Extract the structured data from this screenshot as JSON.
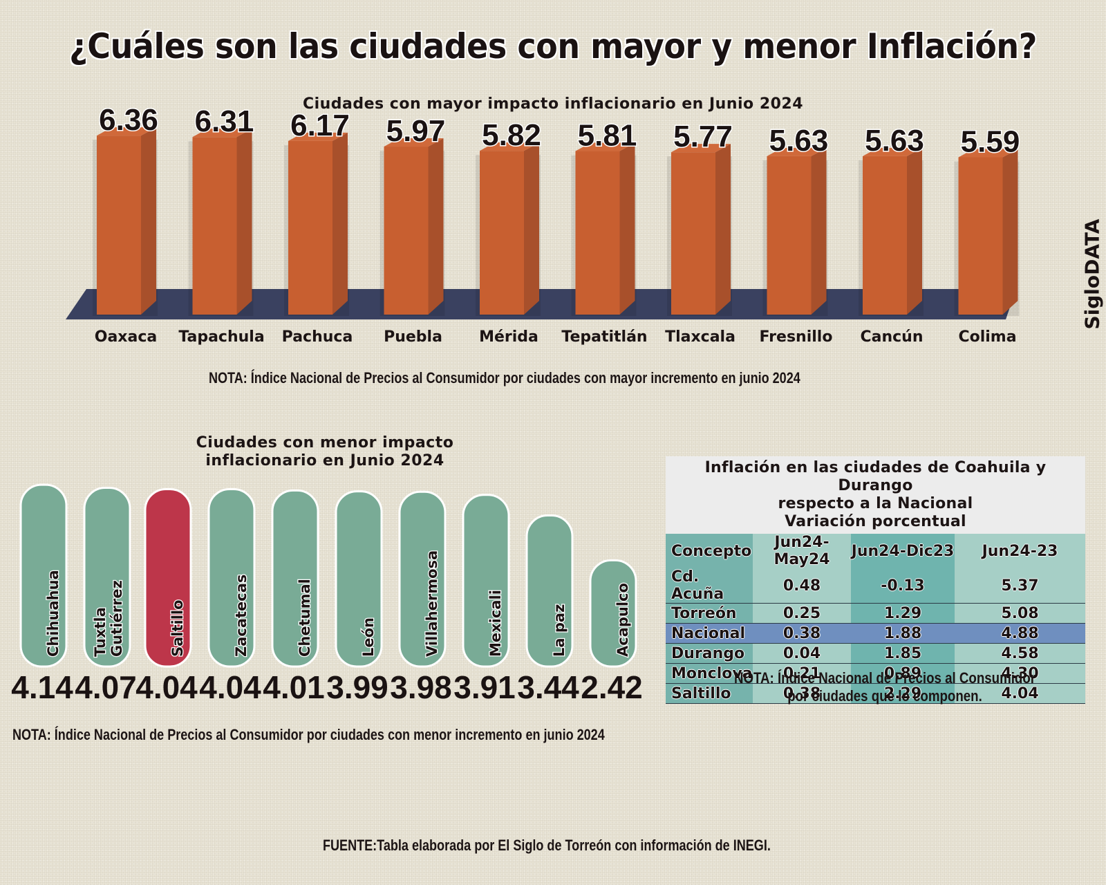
{
  "main_title": "¿Cuáles son las ciudades con mayor y menor Inflación?",
  "brand": "SigloDATA",
  "chart_data": [
    {
      "type": "bar",
      "title": "Ciudades con mayor impacto inflacionario en Junio 2024",
      "categories": [
        "Oaxaca",
        "Tapachula",
        "Pachuca",
        "Puebla",
        "Mérida",
        "Tepatitlán",
        "Tlaxcala",
        "Fresnillo",
        "Cancún",
        "Colima"
      ],
      "values": [
        6.36,
        6.31,
        6.17,
        5.97,
        5.82,
        5.81,
        5.77,
        5.63,
        5.63,
        5.59
      ],
      "labels": [
        "6.36",
        "6.31",
        "6.17",
        "5.97",
        "5.82",
        "5.81",
        "5.77",
        "5.63",
        "5.63",
        "5.59"
      ],
      "xlabel": "",
      "ylabel": "",
      "style": "3d-bar",
      "bar_color": "#c85f30",
      "bar_side_color": "#a8502b",
      "floor_color": "#3a4160",
      "note": "NOTA: Índice Nacional de Precios al Consumidor por ciudades con mayor incremento en junio 2024"
    },
    {
      "type": "bar",
      "title": "Ciudades con menor impacto inflacionario en Junio 2024",
      "title_lines": [
        "Ciudades con menor impacto",
        "inflacionario en Junio 2024"
      ],
      "categories": [
        "Chihuahua",
        "Tuxtla Gutiérrez",
        "Saltillo",
        "Zacatecas",
        "Chetumal",
        "León",
        "Villahermosa",
        "Mexicali",
        "La paz",
        "Acapulco"
      ],
      "category_lines": [
        [
          "Chihuahua"
        ],
        [
          "Tuxtla",
          "Gutiérrez"
        ],
        [
          "Saltillo"
        ],
        [
          "Zacatecas"
        ],
        [
          "Chetumal"
        ],
        [
          "León"
        ],
        [
          "Villahermosa"
        ],
        [
          "Mexicali"
        ],
        [
          "La paz"
        ],
        [
          "Acapulco"
        ]
      ],
      "values": [
        4.14,
        4.07,
        4.04,
        4.04,
        4.01,
        3.99,
        3.98,
        3.91,
        3.44,
        2.42
      ],
      "labels": [
        "4.14",
        "4.07",
        "4.04",
        "4.04",
        "4.01",
        "3.99",
        "3.98",
        "3.91",
        "3.44",
        "2.42"
      ],
      "highlight": "Saltillo",
      "bar_color": "#79ab96",
      "highlight_color": "#bd364a",
      "style": "pill",
      "note": "NOTA: Índice Nacional de Precios al Consumidor por ciudades con menor incremento en junio 2024"
    },
    {
      "type": "table",
      "title_lines": [
        "Inflación en las ciudades de Coahuila y Durango",
        "respecto a la Nacional",
        "Variación porcentual"
      ],
      "columns": [
        "Concepto",
        "Jun24-May24",
        "Jun24-Dic23",
        "Jun24-23"
      ],
      "rows": [
        [
          "Cd. Acuña",
          "0.48",
          "-0.13",
          "5.37"
        ],
        [
          "Torreón",
          "0.25",
          "1.29",
          "5.08"
        ],
        [
          "Nacional",
          "0.38",
          "1.88",
          "4.88"
        ],
        [
          "Durango",
          "0.04",
          "1.85",
          "4.58"
        ],
        [
          "Monclova",
          "0.21",
          "0.89",
          "4.30"
        ],
        [
          "Saltillo",
          "0.38",
          "2.29",
          "4.04"
        ]
      ],
      "highlight_row": "Nacional",
      "highlight_color": "#6f8fbf",
      "note_lines": [
        "NOTA:  Índice Nacional de Precios al Consumidor",
        "por ciudades que lo componen."
      ]
    }
  ],
  "source": "FUENTE:Tabla elaborada por El Siglo de Torreón con información de INEGI."
}
